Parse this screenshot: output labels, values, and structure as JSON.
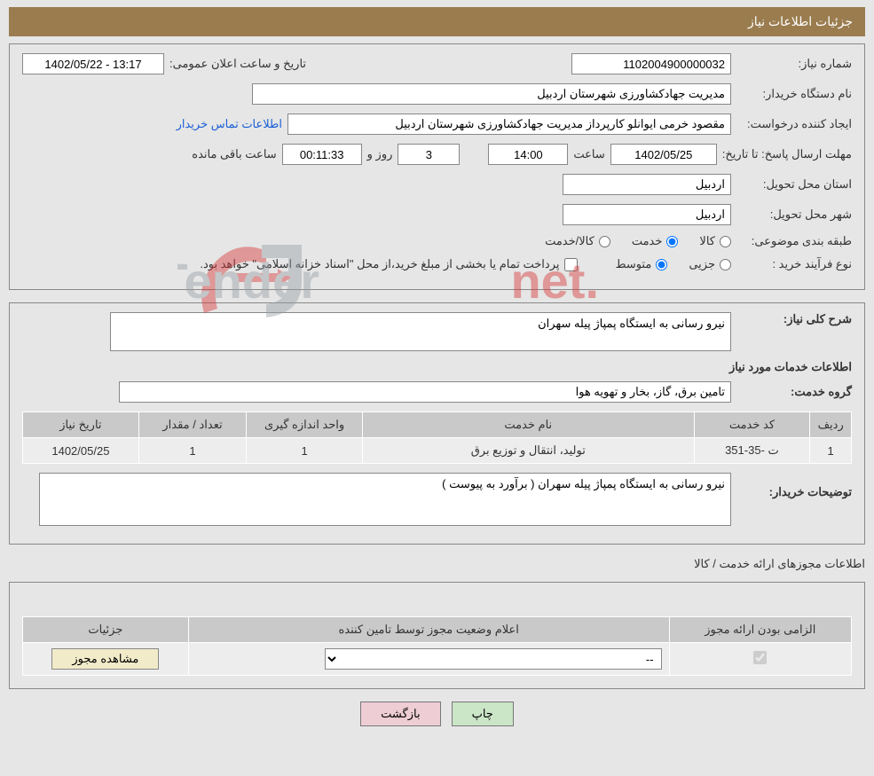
{
  "title_bar": "جزئیات اطلاعات نیاز",
  "fields": {
    "need_no_lbl": "شماره نیاز:",
    "need_no": "1102004900000032",
    "announce_lbl": "تاریخ و ساعت اعلان عمومی:",
    "announce": "13:17 - 1402/05/22",
    "buyer_org_lbl": "نام دستگاه خریدار:",
    "buyer_org": "مدیریت جهادکشاورزی شهرستان اردبیل",
    "requester_lbl": "ایجاد کننده درخواست:",
    "requester": "مقصود خرمی ایوانلو کارپرداز مدیریت جهادکشاورزی شهرستان اردبیل",
    "buyer_contact_link": "اطلاعات تماس خریدار",
    "deadline_lbl": "مهلت ارسال پاسخ: تا تاریخ:",
    "deadline_date": "1402/05/25",
    "hour_lbl": "ساعت",
    "deadline_hour": "14:00",
    "day_word": "روز و",
    "days_remaining": "3",
    "countdown": "00:11:33",
    "remaining_lbl": "ساعت باقی مانده",
    "province_lbl": "استان محل تحویل:",
    "province": "اردبیل",
    "city_lbl": "شهر محل تحویل:",
    "city": "اردبیل",
    "category_lbl": "طبقه بندی موضوعی:",
    "cat_goods": "کالا",
    "cat_service": "خدمت",
    "cat_goods_service": "کالا/خدمت",
    "process_lbl": "نوع فرآیند خرید :",
    "process_small": "جزیی",
    "process_medium": "متوسط",
    "payment_note": "پرداخت تمام یا بخشی از مبلغ خرید،از محل \"اسناد خزانه اسلامی\" خواهد بود.",
    "general_desc_lbl": "شرح کلی نیاز:",
    "general_desc": "نیرو رسانی به ایستگاه پمپاژ پیله سهران",
    "services_info_title": "اطلاعات خدمات مورد نیاز",
    "service_group_lbl": "گروه خدمت:",
    "service_group": "تامین برق، گاز، بخار و تهویه هوا",
    "buyer_notes_lbl": "توضیحات خریدار:",
    "buyer_notes": "نیرو رسانی به ایستگاه پمپاژ پیله سهران ( برآورد به پیوست )",
    "license_section_title": "اطلاعات مجوزهای ارائه خدمت / کالا",
    "btn_print": "چاپ",
    "btn_back": "بازگشت",
    "btn_view_license": "مشاهده مجوز"
  },
  "colors": {
    "title_bar_bg": "#9a7c4f",
    "page_bg": "#e6e6e6",
    "border": "#888888",
    "th_bg": "#c9c9c9",
    "td_bg": "#ededed",
    "link": "#1a5fd6",
    "btn_print_bg": "#cbe5c7",
    "btn_back_bg": "#eecdd5",
    "btn_view_bg": "#f2ebc9",
    "watermark_red": "#d73838",
    "watermark_gray": "#9aa1a8"
  },
  "table1": {
    "headers": [
      "ردیف",
      "کد خدمت",
      "نام خدمت",
      "واحد اندازه گیری",
      "تعداد / مقدار",
      "تاریخ نیاز"
    ],
    "col_widths": [
      "5%",
      "14%",
      "40%",
      "14%",
      "13%",
      "14%"
    ],
    "rows": [
      [
        "1",
        "ت -35-351",
        "تولید، انتقال و توزیع برق",
        "1",
        "1",
        "1402/05/25"
      ]
    ]
  },
  "table2": {
    "headers": [
      "الزامی بودن ارائه مجوز",
      "اعلام وضعیت مجوز توسط تامین کننده",
      "جزئیات"
    ],
    "col_widths": [
      "22%",
      "58%",
      "20%"
    ],
    "select_placeholder": "--"
  },
  "watermark_text": "AriaTender.net"
}
